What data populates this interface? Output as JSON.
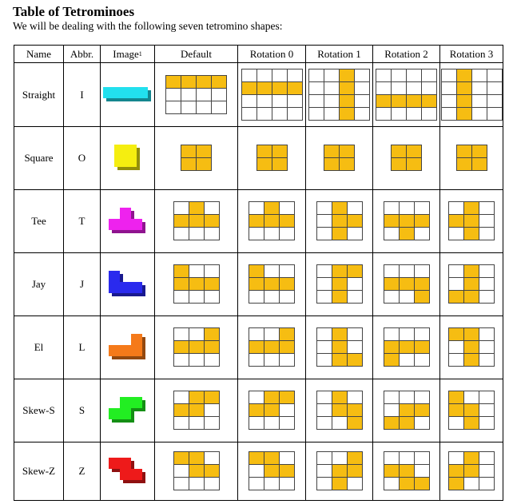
{
  "title": "Table of Tetrominoes",
  "subtitle": "We will be dealing with the following seven tetromino shapes:",
  "headers": {
    "name": "Name",
    "abbr": "Abbr.",
    "image": "Image",
    "image_sup": "1",
    "default": "Default",
    "rot0": "Rotation 0",
    "rot1": "Rotation 1",
    "rot2": "Rotation 2",
    "rot3": "Rotation 3"
  },
  "colors": {
    "filled": "#f6bd12",
    "border": "#444444"
  },
  "pieces": [
    {
      "name": "Straight",
      "abbr": "I",
      "color": "#22e0ee",
      "grids": [
        [
          "####",
          "....",
          "...."
        ],
        [
          "....",
          "####",
          "....",
          "...."
        ],
        [
          "..#.",
          "..#.",
          "..#.",
          "..#."
        ],
        [
          "....",
          "....",
          "####",
          "...."
        ],
        [
          ".#..",
          ".#..",
          ".#..",
          ".#.."
        ]
      ]
    },
    {
      "name": "Square",
      "abbr": "O",
      "color": "#f5ee10",
      "grids": [
        [
          "##",
          "##"
        ],
        [
          "##",
          "##"
        ],
        [
          "##",
          "##"
        ],
        [
          "##",
          "##"
        ],
        [
          "##",
          "##"
        ]
      ]
    },
    {
      "name": "Tee",
      "abbr": "T",
      "color": "#ee22ee",
      "grids": [
        [
          ".#.",
          "###",
          "..."
        ],
        [
          ".#.",
          "###",
          "..."
        ],
        [
          ".#.",
          ".##",
          ".#."
        ],
        [
          "...",
          "###",
          ".#."
        ],
        [
          ".#.",
          "##.",
          ".#."
        ]
      ]
    },
    {
      "name": "Jay",
      "abbr": "J",
      "color": "#2a2aee",
      "grids": [
        [
          "#..",
          "###",
          "..."
        ],
        [
          "#..",
          "###",
          "..."
        ],
        [
          ".##",
          ".#.",
          ".#."
        ],
        [
          "...",
          "###",
          "..#"
        ],
        [
          ".#.",
          ".#.",
          "##."
        ]
      ]
    },
    {
      "name": "El",
      "abbr": "L",
      "color": "#f57a1a",
      "grids": [
        [
          "..#",
          "###",
          "..."
        ],
        [
          "..#",
          "###",
          "..."
        ],
        [
          ".#.",
          ".#.",
          ".##"
        ],
        [
          "...",
          "###",
          "#.."
        ],
        [
          "##.",
          ".#.",
          ".#."
        ]
      ]
    },
    {
      "name": "Skew-S",
      "abbr": "S",
      "color": "#22ee22",
      "grids": [
        [
          ".##",
          "##.",
          "..."
        ],
        [
          ".##",
          "##.",
          "..."
        ],
        [
          ".#.",
          ".##",
          "..#"
        ],
        [
          "...",
          ".##",
          "##."
        ],
        [
          "#..",
          "##.",
          ".#."
        ]
      ]
    },
    {
      "name": "Skew-Z",
      "abbr": "Z",
      "color": "#ee1a1a",
      "grids": [
        [
          "##.",
          ".##",
          "..."
        ],
        [
          "##.",
          ".##",
          "..."
        ],
        [
          "..#",
          ".##",
          ".#."
        ],
        [
          "...",
          "##.",
          ".##"
        ],
        [
          ".#.",
          "##.",
          "#.."
        ]
      ]
    }
  ]
}
